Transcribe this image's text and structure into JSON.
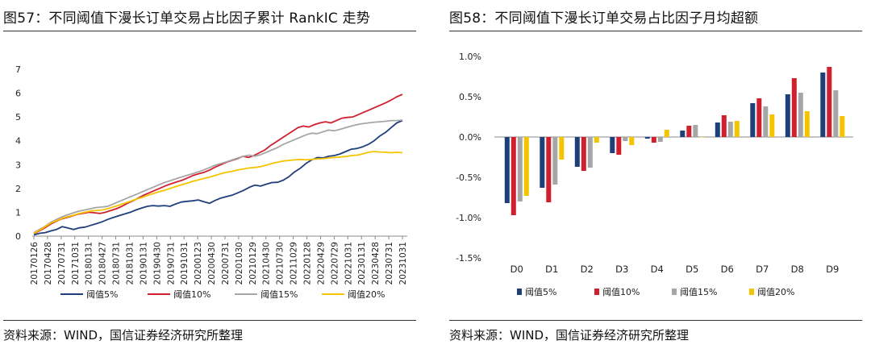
{
  "left": {
    "title": "图57：不同阈值下漫长订单交易占比因子累计 RankIC 走势",
    "source": "资料来源：WIND，国信证券经济研究所整理"
  },
  "right": {
    "title": "图58：不同阈值下漫长订单交易占比因子月均超额",
    "source": "资料来源：WIND，国信证券经济研究所整理"
  },
  "chart_data": [
    {
      "type": "line",
      "title": "不同阈值下漫长订单交易占比因子累计 RankIC 走势",
      "ylim": [
        0,
        7
      ],
      "yticks": [
        0,
        1,
        2,
        3,
        4,
        5,
        6,
        7
      ],
      "xticks": [
        "20170126",
        "20170428",
        "20170731",
        "20171031",
        "20180131",
        "20180427",
        "20180731",
        "20181031",
        "20190131",
        "20190430",
        "20190731",
        "20191031",
        "20200123",
        "20200430",
        "20200731",
        "20201030",
        "20210129",
        "20210430",
        "20210730",
        "20211029",
        "20220128",
        "20220429",
        "20220729",
        "20221031",
        "20230131",
        "20230428",
        "20230731",
        "20231031"
      ],
      "series": [
        {
          "name": "阈值5%",
          "color": "#1f3f7a",
          "values": [
            0.05,
            0.12,
            0.15,
            0.22,
            0.28,
            0.4,
            0.34,
            0.28,
            0.35,
            0.38,
            0.45,
            0.52,
            0.6,
            0.7,
            0.78,
            0.86,
            0.93,
            1.0,
            1.1,
            1.18,
            1.25,
            1.28,
            1.26,
            1.28,
            1.25,
            1.35,
            1.43,
            1.46,
            1.48,
            1.52,
            1.44,
            1.38,
            1.5,
            1.6,
            1.66,
            1.72,
            1.82,
            1.92,
            2.05,
            2.14,
            2.1,
            2.18,
            2.25,
            2.26,
            2.35,
            2.5,
            2.7,
            2.85,
            3.05,
            3.2,
            3.3,
            3.28,
            3.35,
            3.38,
            3.45,
            3.55,
            3.65,
            3.68,
            3.75,
            3.85,
            4.0,
            4.2,
            4.35,
            4.55,
            4.75,
            4.85
          ]
        },
        {
          "name": "阈值10%",
          "color": "#d0202e",
          "values": [
            0.1,
            0.22,
            0.35,
            0.5,
            0.62,
            0.72,
            0.78,
            0.85,
            0.92,
            0.96,
            1.0,
            0.98,
            0.95,
            1.0,
            1.08,
            1.15,
            1.25,
            1.38,
            1.48,
            1.6,
            1.72,
            1.82,
            1.92,
            2.02,
            2.12,
            2.2,
            2.28,
            2.35,
            2.45,
            2.55,
            2.62,
            2.68,
            2.78,
            2.9,
            3.0,
            3.1,
            3.18,
            3.25,
            3.35,
            3.3,
            3.38,
            3.5,
            3.62,
            3.8,
            3.95,
            4.1,
            4.25,
            4.4,
            4.55,
            4.62,
            4.58,
            4.68,
            4.75,
            4.8,
            4.75,
            4.85,
            4.95,
            4.98,
            5.0,
            5.1,
            5.2,
            5.3,
            5.4,
            5.5,
            5.6,
            5.72,
            5.85,
            5.95
          ]
        },
        {
          "name": "阈值15%",
          "color": "#a6a6a6",
          "values": [
            0.15,
            0.28,
            0.42,
            0.58,
            0.7,
            0.82,
            0.9,
            0.98,
            1.05,
            1.1,
            1.15,
            1.2,
            1.22,
            1.25,
            1.35,
            1.45,
            1.55,
            1.65,
            1.75,
            1.85,
            1.95,
            2.05,
            2.15,
            2.25,
            2.32,
            2.4,
            2.48,
            2.55,
            2.62,
            2.7,
            2.78,
            2.88,
            2.98,
            3.05,
            3.12,
            3.2,
            3.28,
            3.35,
            3.4,
            3.35,
            3.42,
            3.52,
            3.62,
            3.72,
            3.85,
            3.95,
            4.05,
            4.15,
            4.25,
            4.32,
            4.3,
            4.38,
            4.45,
            4.42,
            4.48,
            4.55,
            4.62,
            4.68,
            4.72,
            4.75,
            4.78,
            4.8,
            4.82,
            4.85,
            4.85,
            4.87
          ]
        },
        {
          "name": "阈值20%",
          "color": "#f5c400",
          "values": [
            0.12,
            0.25,
            0.4,
            0.55,
            0.65,
            0.75,
            0.82,
            0.88,
            0.95,
            1.0,
            1.05,
            1.08,
            1.1,
            1.15,
            1.22,
            1.3,
            1.38,
            1.46,
            1.55,
            1.62,
            1.7,
            1.78,
            1.86,
            1.92,
            2.0,
            2.08,
            2.15,
            2.22,
            2.3,
            2.36,
            2.42,
            2.48,
            2.55,
            2.62,
            2.68,
            2.72,
            2.78,
            2.82,
            2.86,
            2.88,
            2.92,
            2.98,
            3.05,
            3.1,
            3.15,
            3.18,
            3.2,
            3.22,
            3.2,
            3.22,
            3.24,
            3.25,
            3.28,
            3.3,
            3.32,
            3.34,
            3.38,
            3.4,
            3.45,
            3.52,
            3.55,
            3.53,
            3.52,
            3.5,
            3.52,
            3.5
          ]
        }
      ]
    },
    {
      "type": "bar",
      "title": "不同阈值下漫长订单交易占比因子月均超额",
      "categories": [
        "D0",
        "D1",
        "D2",
        "D3",
        "D4",
        "D5",
        "D6",
        "D7",
        "D8",
        "D9"
      ],
      "ylim": [
        -1.5,
        1.0
      ],
      "yticks": [
        "-1.5%",
        "-1.0%",
        "-0.5%",
        "0.0%",
        "0.5%",
        "1.0%"
      ],
      "yticks_values": [
        -1.5,
        -1.0,
        -0.5,
        0.0,
        0.5,
        1.0
      ],
      "series": [
        {
          "name": "阈值5%",
          "color": "#1f3f7a",
          "values": [
            -0.82,
            -0.63,
            -0.37,
            -0.2,
            -0.02,
            0.08,
            0.18,
            0.42,
            0.53,
            0.8
          ]
        },
        {
          "name": "阈值10%",
          "color": "#d0202e",
          "values": [
            -0.97,
            -0.81,
            -0.42,
            -0.22,
            -0.07,
            0.14,
            0.27,
            0.48,
            0.73,
            0.87
          ]
        },
        {
          "name": "阈值15%",
          "color": "#a6a6a6",
          "values": [
            -0.8,
            -0.59,
            -0.38,
            -0.05,
            -0.06,
            0.15,
            0.19,
            0.38,
            0.55,
            0.58
          ]
        },
        {
          "name": "阈值20%",
          "color": "#f5c400",
          "values": [
            -0.73,
            -0.28,
            -0.07,
            -0.1,
            0.09,
            0.0,
            0.2,
            0.28,
            0.32,
            0.26
          ]
        }
      ]
    }
  ]
}
